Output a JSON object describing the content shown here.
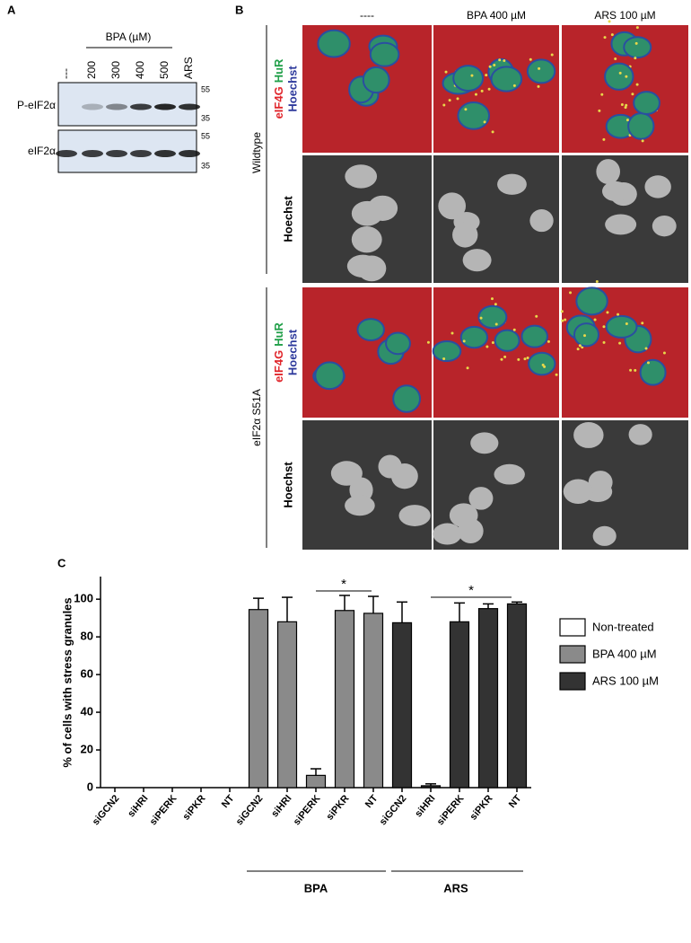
{
  "panel_a": {
    "label": "A",
    "treatment": "BPA (µM)",
    "lanes": [
      "---",
      "200",
      "300",
      "400",
      "500",
      "ARS"
    ],
    "rows": [
      "P-eIF2α",
      "eIF2α"
    ],
    "markers": [
      "55",
      "35",
      "55",
      "35"
    ]
  },
  "panel_b": {
    "label": "B",
    "columns": [
      "----",
      "BPA 400 µM",
      "ARS 100 µM"
    ],
    "rows": [
      "Wildtype",
      "eIF2α S51A"
    ],
    "stain_labels": [
      "eIF4G",
      "HuR",
      "Hoechst"
    ],
    "hoechst_label": "Hoechst"
  },
  "chart_data": {
    "type": "bar",
    "panel_label": "C",
    "y_label": "% of cells with stress granules",
    "categories": [
      "siGCN2",
      "siHRI",
      "siPERK",
      "siPKR",
      "NT",
      "siGCN2",
      "siHRI",
      "siPERK",
      "siPKR",
      "NT",
      "siGCN2",
      "siHRI",
      "siPERK",
      "siPKR",
      "NT"
    ],
    "groups": [
      "BPA",
      "ARS"
    ],
    "annotations": [
      "*",
      "*"
    ],
    "series": [
      {
        "name": "Non-treated",
        "color": "#ffffff",
        "values": [
          0,
          0,
          0,
          0,
          0,
          null,
          null,
          null,
          null,
          null,
          null,
          null,
          null,
          null,
          null
        ]
      },
      {
        "name": "BPA 400 µM",
        "color": "#8a8a8a",
        "values": [
          null,
          null,
          null,
          null,
          null,
          94.5,
          88,
          6.5,
          94,
          92.5,
          null,
          null,
          null,
          null,
          null
        ],
        "errors": [
          null,
          null,
          null,
          null,
          null,
          6,
          13,
          3.5,
          8,
          9,
          null,
          null,
          null,
          null,
          null
        ]
      },
      {
        "name": "ARS 100 µM",
        "color": "#333333",
        "values": [
          null,
          null,
          null,
          null,
          null,
          null,
          null,
          null,
          null,
          null,
          87.5,
          1,
          88,
          95,
          97.5
        ],
        "errors": [
          null,
          null,
          null,
          null,
          null,
          null,
          null,
          null,
          null,
          null,
          11,
          1,
          10,
          2.5,
          1
        ]
      }
    ],
    "ylim": [
      0,
      112
    ],
    "yticks": [
      0,
      20,
      40,
      60,
      80,
      100
    ]
  }
}
